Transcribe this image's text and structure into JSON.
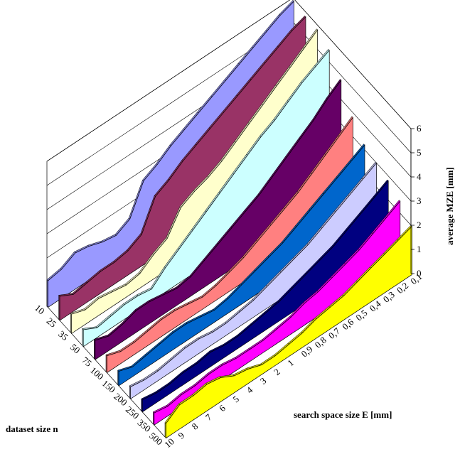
{
  "chart_data": {
    "type": "area",
    "variant": "3d-ribbon-surface",
    "xlabel": "dataset size n",
    "ylabel": "search space size E [mm]",
    "zlabel": "average MZE [mm]",
    "zlim": [
      0,
      6
    ],
    "z_ticks": [
      "0",
      "1",
      "2",
      "3",
      "4",
      "5",
      "6"
    ],
    "n_ticks": [
      "10",
      "25",
      "35",
      "50",
      "75",
      "100",
      "150",
      "200",
      "250",
      "350",
      "500"
    ],
    "E_ticks": [
      "0,1",
      "0,2",
      "0,3",
      "0,4",
      "0,5",
      "0,6",
      "0,7",
      "0,8",
      "0,9",
      "1",
      "2",
      "3",
      "4",
      "5",
      "6",
      "7",
      "8",
      "9",
      "10"
    ],
    "series": [
      {
        "n": "10",
        "color": "#9999ff",
        "values": [
          5.9,
          5.7,
          5.4,
          5.1,
          4.8,
          4.5,
          4.2,
          3.9,
          3.6,
          3.3,
          2.9,
          2.6,
          1.4,
          1.1,
          1.2,
          1.4,
          1.5,
          1.2,
          1.1
        ]
      },
      {
        "n": "25",
        "color": "#993366",
        "values": [
          5.8,
          5.6,
          5.3,
          5.0,
          4.7,
          4.4,
          4.1,
          3.8,
          3.5,
          3.2,
          2.8,
          2.5,
          1.3,
          1.0,
          0.9,
          0.9,
          0.8,
          0.7,
          1.0
        ]
      },
      {
        "n": "35",
        "color": "#ffffcc",
        "values": [
          5.8,
          5.4,
          5.0,
          4.6,
          4.2,
          3.8,
          3.4,
          3.0,
          2.7,
          2.5,
          2.2,
          1.3,
          1.0,
          0.6,
          0.5,
          0.6,
          0.7,
          0.6,
          0.8
        ]
      },
      {
        "n": "50",
        "color": "#ccffff",
        "values": [
          5.5,
          5.2,
          4.9,
          4.5,
          4.1,
          3.8,
          3.4,
          3.0,
          2.6,
          2.2,
          1.8,
          1.4,
          1.0,
          0.5,
          0.6,
          0.6,
          0.5,
          0.4,
          0.7
        ]
      },
      {
        "n": "75",
        "color": "#660066",
        "values": [
          4.8,
          4.4,
          3.9,
          3.5,
          3.1,
          2.7,
          2.3,
          2.0,
          1.7,
          1.4,
          1.1,
          0.8,
          0.7,
          0.8,
          0.9,
          0.9,
          0.7,
          0.6,
          0.8
        ]
      },
      {
        "n": "100",
        "color": "#ff8080",
        "values": [
          3.8,
          3.4,
          3.0,
          2.6,
          2.2,
          1.9,
          1.6,
          1.3,
          1.0,
          0.8,
          0.6,
          0.5,
          0.6,
          0.7,
          0.7,
          0.6,
          0.5,
          0.5,
          0.7
        ]
      },
      {
        "n": "150",
        "color": "#0066cc",
        "values": [
          3.2,
          2.9,
          2.6,
          2.3,
          2.0,
          1.7,
          1.4,
          1.2,
          1.0,
          0.8,
          0.6,
          0.5,
          0.6,
          0.7,
          0.7,
          0.6,
          0.5,
          0.4,
          0.6
        ]
      },
      {
        "n": "200",
        "color": "#ccccff",
        "values": [
          3.0,
          2.7,
          2.4,
          2.1,
          1.8,
          1.5,
          1.3,
          1.1,
          0.9,
          0.7,
          0.6,
          0.5,
          0.5,
          0.6,
          0.6,
          0.5,
          0.4,
          0.4,
          0.5
        ]
      },
      {
        "n": "250",
        "color": "#000080",
        "values": [
          2.8,
          2.5,
          2.2,
          1.9,
          1.6,
          1.4,
          1.2,
          1.0,
          0.8,
          0.7,
          0.6,
          0.5,
          0.5,
          0.6,
          0.5,
          0.5,
          0.4,
          0.4,
          0.5
        ]
      },
      {
        "n": "350",
        "color": "#ff00ff",
        "values": [
          2.5,
          2.2,
          1.9,
          1.6,
          1.4,
          1.2,
          1.0,
          0.9,
          0.7,
          0.6,
          0.5,
          0.5,
          0.5,
          0.6,
          0.6,
          0.5,
          0.5,
          0.4,
          0.5
        ]
      },
      {
        "n": "500",
        "color": "#ffff00",
        "values": [
          2.0,
          1.8,
          1.6,
          1.4,
          1.2,
          1.0,
          0.9,
          0.8,
          0.6,
          0.5,
          0.4,
          0.4,
          0.6,
          0.7,
          1.0,
          1.1,
          1.0,
          1.0,
          0.6
        ]
      }
    ]
  }
}
